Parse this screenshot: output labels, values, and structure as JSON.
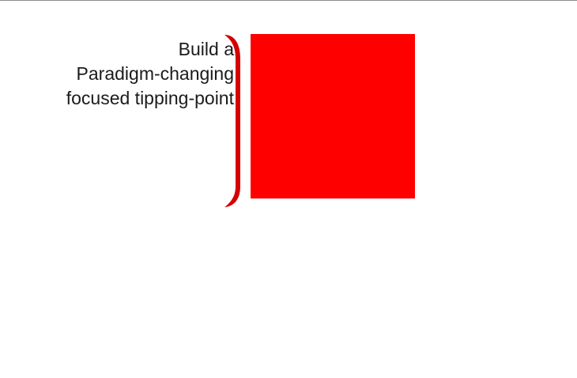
{
  "label": {
    "lines": [
      "Build a",
      "Paradigm-changing",
      "focused tipping-point"
    ]
  },
  "colors": {
    "accent": "#ff0000",
    "brace": "#d50000",
    "text": "#1b1b1b",
    "background": "#ffffff"
  }
}
